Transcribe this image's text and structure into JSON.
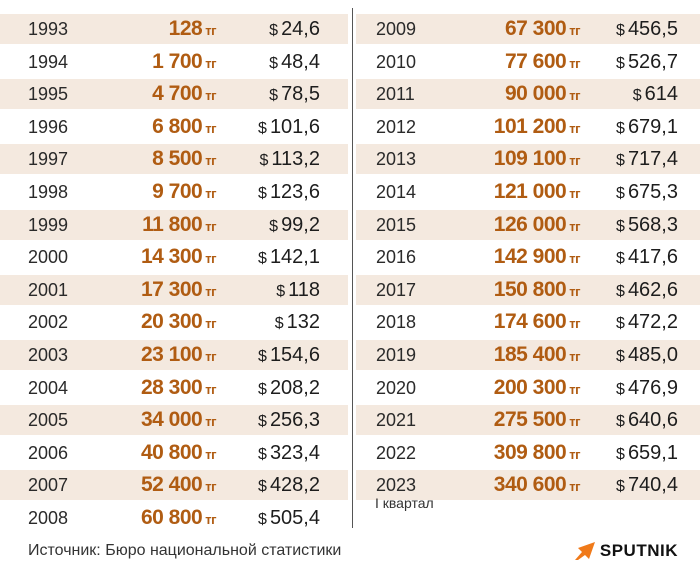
{
  "currency": {
    "tenge_unit": "тг",
    "usd_sign": "$"
  },
  "left_rows": [
    {
      "year": "1993",
      "tenge": "128",
      "usd": "24,6"
    },
    {
      "year": "1994",
      "tenge": "1 700",
      "usd": "48,4"
    },
    {
      "year": "1995",
      "tenge": "4 700",
      "usd": "78,5"
    },
    {
      "year": "1996",
      "tenge": "6 800",
      "usd": "101,6"
    },
    {
      "year": "1997",
      "tenge": "8 500",
      "usd": "113,2"
    },
    {
      "year": "1998",
      "tenge": "9 700",
      "usd": "123,6"
    },
    {
      "year": "1999",
      "tenge": "11 800",
      "usd": "99,2"
    },
    {
      "year": "2000",
      "tenge": "14 300",
      "usd": "142,1"
    },
    {
      "year": "2001",
      "tenge": "17 300",
      "usd": "118"
    },
    {
      "year": "2002",
      "tenge": "20 300",
      "usd": "132"
    },
    {
      "year": "2003",
      "tenge": "23 100",
      "usd": "154,6"
    },
    {
      "year": "2004",
      "tenge": "28 300",
      "usd": "208,2"
    },
    {
      "year": "2005",
      "tenge": "34 000",
      "usd": "256,3"
    },
    {
      "year": "2006",
      "tenge": "40 800",
      "usd": "323,4"
    },
    {
      "year": "2007",
      "tenge": "52 400",
      "usd": "428,2"
    },
    {
      "year": "2008",
      "tenge": "60 800",
      "usd": "505,4"
    }
  ],
  "right_rows": [
    {
      "year": "2009",
      "tenge": "67 300",
      "usd": "456,5"
    },
    {
      "year": "2010",
      "tenge": "77 600",
      "usd": "526,7"
    },
    {
      "year": "2011",
      "tenge": "90 000",
      "usd": "614"
    },
    {
      "year": "2012",
      "tenge": "101 200",
      "usd": "679,1"
    },
    {
      "year": "2013",
      "tenge": "109 100",
      "usd": "717,4"
    },
    {
      "year": "2014",
      "tenge": "121 000",
      "usd": "675,3"
    },
    {
      "year": "2015",
      "tenge": "126 000",
      "usd": "568,3"
    },
    {
      "year": "2016",
      "tenge": "142 900",
      "usd": "417,6"
    },
    {
      "year": "2017",
      "tenge": "150 800",
      "usd": "462,6"
    },
    {
      "year": "2018",
      "tenge": "174 600",
      "usd": "472,2"
    },
    {
      "year": "2019",
      "tenge": "185 400",
      "usd": "485,0"
    },
    {
      "year": "2020",
      "tenge": "200 300",
      "usd": "476,9"
    },
    {
      "year": "2021",
      "tenge": "275 500",
      "usd": "640,6"
    },
    {
      "year": "2022",
      "tenge": "309 800",
      "usd": "659,1"
    },
    {
      "year": "2023",
      "tenge": "340 600",
      "usd": "740,4"
    }
  ],
  "quarter_note": "I квартал",
  "source": "Источник: Бюро национальной статистики",
  "logo": {
    "text": "SPUTNIK",
    "color": "#f07a1a"
  },
  "colors": {
    "shade": "#f4e9df",
    "tenge": "#b05c12"
  }
}
